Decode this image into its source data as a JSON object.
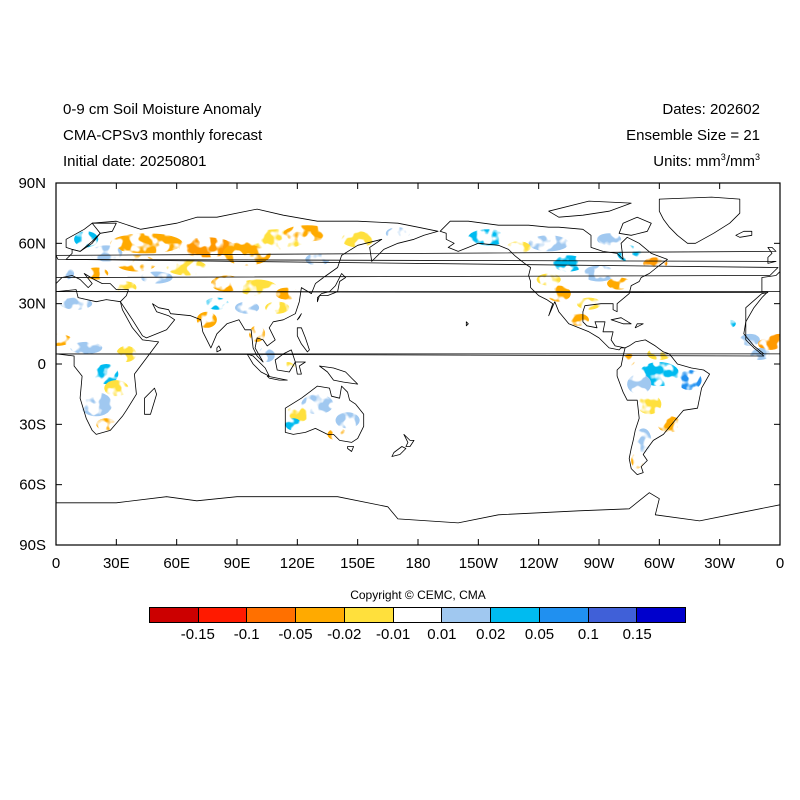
{
  "header": {
    "left_lines": [
      "0-9 cm Soil Moisture Anomaly",
      "CMA-CPSv3 monthly forecast",
      "Initial date: 20250801"
    ],
    "dates": "Dates: 202602",
    "ensemble": "Ensemble Size = 21",
    "units_prefix": "Units: mm",
    "units_mid": "/mm",
    "units_sup": "3"
  },
  "map": {
    "projection": "cylindrical equidistant",
    "lon_range": [
      0,
      360
    ],
    "lat_range": [
      -90,
      90
    ],
    "lat_ticks": [
      {
        "value": 90,
        "label": "90N"
      },
      {
        "value": 60,
        "label": "60N"
      },
      {
        "value": 30,
        "label": "30N"
      },
      {
        "value": 0,
        "label": "0"
      },
      {
        "value": -30,
        "label": "30S"
      },
      {
        "value": -60,
        "label": "60S"
      },
      {
        "value": -90,
        "label": "90S"
      }
    ],
    "lon_ticks": [
      {
        "value": 0,
        "label": "0"
      },
      {
        "value": 30,
        "label": "30E"
      },
      {
        "value": 60,
        "label": "60E"
      },
      {
        "value": 90,
        "label": "90E"
      },
      {
        "value": 120,
        "label": "120E"
      },
      {
        "value": 150,
        "label": "150E"
      },
      {
        "value": 180,
        "label": "180"
      },
      {
        "value": 210,
        "label": "150W"
      },
      {
        "value": 240,
        "label": "120W"
      },
      {
        "value": 270,
        "label": "90W"
      },
      {
        "value": 300,
        "label": "60W"
      },
      {
        "value": 330,
        "label": "30W"
      },
      {
        "value": 360,
        "label": "0"
      }
    ]
  },
  "copyright": "Copyright © CEMC, CMA",
  "colorbar": {
    "colors": [
      "#cc0000",
      "#ff1a00",
      "#ff7000",
      "#ffaa00",
      "#ffe03c",
      "#ffffff",
      "#a0c8f0",
      "#00bbf0",
      "#2090f0",
      "#4060d8",
      "#0000cc"
    ],
    "labels": [
      "-0.15",
      "-0.1",
      "-0.05",
      "-0.02",
      "-0.01",
      "0.01",
      "0.02",
      "0.05",
      "0.1",
      "0.15"
    ]
  },
  "anomaly_colors": {
    "dry_strong": "#ff9900",
    "dry": "#ffaa00",
    "dry_light": "#ffe03c",
    "wet_light": "#a0c8f0",
    "wet": "#00bbf0",
    "wet_strong": "#2090f0"
  }
}
